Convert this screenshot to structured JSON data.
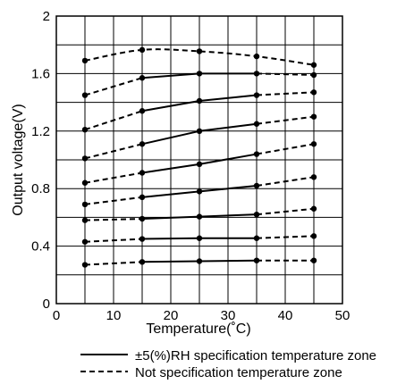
{
  "chart_data": {
    "type": "line",
    "xlabel": "Temperature(˚C)",
    "ylabel": "Output voltage(V)",
    "xlim": [
      0,
      50
    ],
    "ylim": [
      0,
      2
    ],
    "x_ticks": [
      0,
      10,
      20,
      30,
      40,
      50
    ],
    "x_tick_labels": [
      "0",
      "10",
      "20",
      "30",
      "40",
      "50"
    ],
    "y_ticks": [
      0,
      0.4,
      0.8,
      1.2,
      1.6,
      2
    ],
    "y_tick_labels": [
      "0",
      "0.4",
      "0.8",
      "1.2",
      "1.6",
      "2"
    ],
    "x_grid_step": 5,
    "y_grid_step": 0.2,
    "grid": true,
    "legend_position": "bottom",
    "legend": [
      {
        "label": "±5(%)RH specification temperature zone",
        "style": "solid"
      },
      {
        "label": "Not specification temperature zone",
        "style": "dashed"
      }
    ],
    "x": [
      5,
      15,
      25,
      35,
      45
    ],
    "series": [
      {
        "values": [
          0.27,
          0.29,
          0.295,
          0.3,
          0.3
        ]
      },
      {
        "values": [
          0.43,
          0.45,
          0.455,
          0.455,
          0.47
        ]
      },
      {
        "values": [
          0.58,
          0.59,
          0.605,
          0.62,
          0.66
        ]
      },
      {
        "values": [
          0.69,
          0.74,
          0.78,
          0.82,
          0.88
        ]
      },
      {
        "values": [
          0.84,
          0.91,
          0.97,
          1.04,
          1.11
        ]
      },
      {
        "values": [
          1.01,
          1.11,
          1.2,
          1.25,
          1.3
        ]
      },
      {
        "values": [
          1.21,
          1.34,
          1.41,
          1.45,
          1.47
        ]
      },
      {
        "values": [
          1.45,
          1.57,
          1.6,
          1.6,
          1.59
        ]
      },
      {
        "values": [
          1.69,
          1.765,
          1.755,
          1.72,
          1.66
        ],
        "smooth": true
      }
    ],
    "solid_range": [
      15,
      35
    ]
  }
}
